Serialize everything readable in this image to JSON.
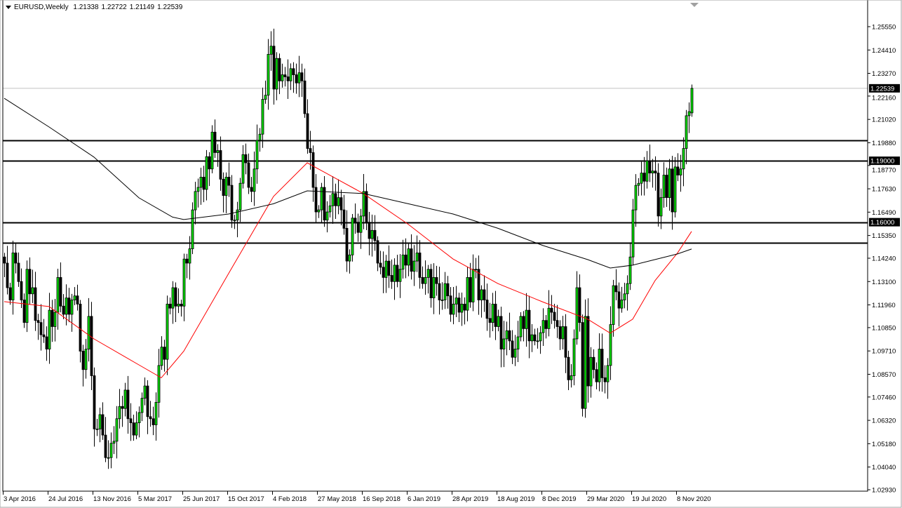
{
  "header": {
    "symbol": "EURUSD,Weekly",
    "open": "1.21338",
    "high": "1.22722",
    "low": "1.21149",
    "close": "1.22539"
  },
  "colors": {
    "bull": "#00e000",
    "bear": "#000000",
    "ma_fast": "#ff0000",
    "ma_slow": "#000000",
    "level": "#000000",
    "price_line": "#c0c0c0"
  },
  "chart_data": {
    "type": "candlestick",
    "start_week": "2016-04-03",
    "closes": [
      1.14,
      1.128,
      1.122,
      1.145,
      1.14,
      1.131,
      1.122,
      1.111,
      1.137,
      1.125,
      1.128,
      1.112,
      1.111,
      1.105,
      1.104,
      1.098,
      1.117,
      1.109,
      1.116,
      1.133,
      1.119,
      1.115,
      1.123,
      1.115,
      1.122,
      1.124,
      1.12,
      1.097,
      1.088,
      1.098,
      1.114,
      1.085,
      1.059,
      1.059,
      1.066,
      1.056,
      1.045,
      1.045,
      1.052,
      1.053,
      1.064,
      1.07,
      1.069,
      1.078,
      1.064,
      1.062,
      1.056,
      1.062,
      1.067,
      1.074,
      1.08,
      1.065,
      1.064,
      1.061,
      1.072,
      1.09,
      1.099,
      1.093,
      1.12,
      1.118,
      1.128,
      1.119,
      1.12,
      1.119,
      1.142,
      1.14,
      1.147,
      1.166,
      1.175,
      1.177,
      1.182,
      1.176,
      1.192,
      1.186,
      1.204,
      1.194,
      1.195,
      1.181,
      1.173,
      1.182,
      1.178,
      1.161,
      1.161,
      1.166,
      1.179,
      1.193,
      1.189,
      1.177,
      1.175,
      1.186,
      1.2,
      1.203,
      1.22,
      1.222,
      1.242,
      1.246,
      1.225,
      1.24,
      1.229,
      1.232,
      1.231,
      1.229,
      1.235,
      1.232,
      1.228,
      1.233,
      1.229,
      1.213,
      1.196,
      1.194,
      1.177,
      1.165,
      1.166,
      1.177,
      1.161,
      1.165,
      1.168,
      1.174,
      1.168,
      1.172,
      1.166,
      1.157,
      1.141,
      1.144,
      1.162,
      1.16,
      1.155,
      1.163,
      1.175,
      1.16,
      1.152,
      1.156,
      1.151,
      1.14,
      1.138,
      1.133,
      1.141,
      1.134,
      1.131,
      1.139,
      1.131,
      1.137,
      1.144,
      1.139,
      1.147,
      1.136,
      1.141,
      1.145,
      1.133,
      1.13,
      1.133,
      1.137,
      1.123,
      1.133,
      1.13,
      1.122,
      1.122,
      1.13,
      1.124,
      1.115,
      1.12,
      1.123,
      1.116,
      1.12,
      1.117,
      1.133,
      1.121,
      1.137,
      1.137,
      1.122,
      1.127,
      1.122,
      1.113,
      1.111,
      1.12,
      1.109,
      1.114,
      1.098,
      1.103,
      1.107,
      1.102,
      1.094,
      1.098,
      1.104,
      1.114,
      1.108,
      1.117,
      1.102,
      1.105,
      1.102,
      1.102,
      1.106,
      1.112,
      1.108,
      1.118,
      1.116,
      1.112,
      1.109,
      1.103,
      1.109,
      1.094,
      1.083,
      1.085,
      1.103,
      1.128,
      1.111,
      1.069,
      1.114,
      1.08,
      1.094,
      1.088,
      1.082,
      1.098,
      1.084,
      1.082,
      1.09,
      1.11,
      1.129,
      1.126,
      1.118,
      1.122,
      1.125,
      1.13,
      1.143,
      1.166,
      1.178,
      1.179,
      1.184,
      1.18,
      1.19,
      1.184,
      1.185,
      1.184,
      1.163,
      1.172,
      1.183,
      1.172,
      1.186,
      1.165,
      1.187,
      1.183,
      1.186,
      1.196,
      1.212,
      1.214,
      1.22539
    ],
    "last_bar": {
      "open": 1.21338,
      "high": 1.22722,
      "low": 1.21149,
      "close": 1.22539
    },
    "ma_fast": [
      [
        "2016-04-03",
        1.1212
      ],
      [
        "2016-07-24",
        1.1188
      ],
      [
        "2016-11-13",
        1.103
      ],
      [
        "2017-03-05",
        1.0903
      ],
      [
        "2017-04-30",
        1.084
      ],
      [
        "2017-06-25",
        1.097
      ],
      [
        "2017-10-15",
        1.135
      ],
      [
        "2018-02-04",
        1.1726
      ],
      [
        "2018-04-29",
        1.189
      ],
      [
        "2018-05-27",
        1.186
      ],
      [
        "2018-09-16",
        1.174
      ],
      [
        "2019-01-06",
        1.159
      ],
      [
        "2019-04-28",
        1.142
      ],
      [
        "2019-08-18",
        1.13
      ],
      [
        "2019-12-08",
        1.121
      ],
      [
        "2020-03-29",
        1.1126
      ],
      [
        "2020-05-24",
        1.1058
      ],
      [
        "2020-07-19",
        1.1126
      ],
      [
        "2020-09-13",
        1.1315
      ],
      [
        "2020-11-08",
        1.145
      ],
      [
        "2020-12-13",
        1.1555
      ]
    ],
    "ma_slow": [
      [
        "2016-04-03",
        1.2205
      ],
      [
        "2016-07-24",
        1.2065
      ],
      [
        "2016-11-13",
        1.1918
      ],
      [
        "2017-03-05",
        1.1719
      ],
      [
        "2017-05-28",
        1.1625
      ],
      [
        "2017-06-25",
        1.1613
      ],
      [
        "2017-10-15",
        1.164
      ],
      [
        "2018-02-04",
        1.169
      ],
      [
        "2018-04-29",
        1.1753
      ],
      [
        "2018-09-16",
        1.174
      ],
      [
        "2019-01-06",
        1.169
      ],
      [
        "2019-04-28",
        1.164
      ],
      [
        "2019-08-18",
        1.157
      ],
      [
        "2019-12-08",
        1.1486
      ],
      [
        "2020-03-29",
        1.1417
      ],
      [
        "2020-05-24",
        1.1376
      ],
      [
        "2020-07-19",
        1.139
      ],
      [
        "2020-11-08",
        1.1445
      ],
      [
        "2020-12-13",
        1.1469
      ]
    ],
    "levels": [
      1.2,
      1.19,
      1.16,
      1.15
    ],
    "current_price": 1.22539,
    "ylim": [
      1.0293,
      1.2555
    ],
    "y_ticks": [
      "1.25550",
      "1.24410",
      "1.23270",
      "1.22160",
      "1.21020",
      "1.19880",
      "1.18770",
      "1.17630",
      "1.16490",
      "1.15350",
      "1.14240",
      "1.13100",
      "1.11960",
      "1.10850",
      "1.09710",
      "1.08570",
      "1.07460",
      "1.06320",
      "1.05180",
      "1.04040",
      "1.02930"
    ],
    "y_highlight": [
      "1.22539",
      "1.19000",
      "1.16000"
    ],
    "x_ticks": [
      "3 Apr 2016",
      "24 Jul 2016",
      "13 Nov 2016",
      "5 Mar 2017",
      "25 Jun 2017",
      "15 Oct 2017",
      "4 Feb 2018",
      "27 May 2018",
      "16 Sep 2018",
      "6 Jan 2019",
      "28 Apr 2019",
      "18 Aug 2019",
      "8 Dec 2019",
      "29 Mar 2020",
      "19 Jul 2020",
      "8 Nov 2020"
    ]
  }
}
